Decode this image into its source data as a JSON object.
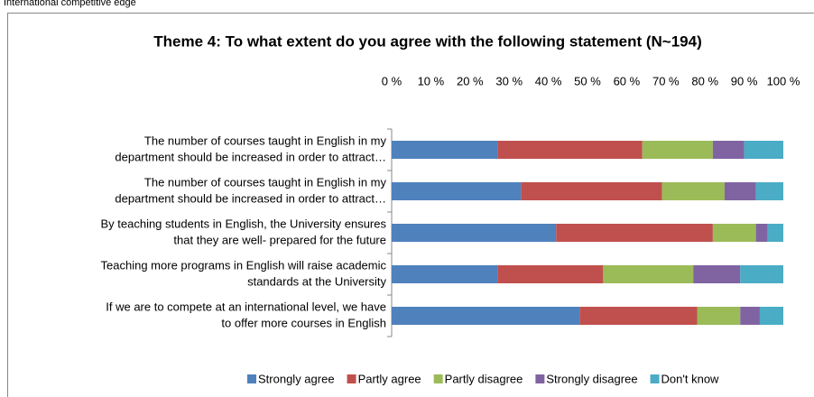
{
  "caption": "International competitive edge",
  "chart_data": {
    "type": "stacked-bar-horizontal",
    "title": "Theme 4: To what extent do you agree with the following statement (N~194)",
    "categories": [
      [
        "The number of courses taught in English in my",
        "department should be increased in order to attract…"
      ],
      [
        "The number of courses taught in English in my",
        "department should be increased in order to attract…"
      ],
      [
        "By teaching students in English, the University ensures",
        "that they are well- prepared for the future"
      ],
      [
        "Teaching more programs in English will raise academic",
        "standards at the University"
      ],
      [
        "If we are to compete at an international level, we have",
        "to offer more courses in English"
      ]
    ],
    "series": [
      {
        "name": "Strongly agree",
        "color": "#4f81bd",
        "values": [
          27,
          33,
          42,
          27,
          48
        ]
      },
      {
        "name": "Partly agree",
        "color": "#c0504d",
        "values": [
          37,
          36,
          40,
          27,
          30
        ]
      },
      {
        "name": "Partly disagree",
        "color": "#9bbb59",
        "values": [
          18,
          16,
          11,
          23,
          11
        ]
      },
      {
        "name": "Strongly disagree",
        "color": "#8064a2",
        "values": [
          8,
          8,
          3,
          12,
          5
        ]
      },
      {
        "name": "Don't know",
        "color": "#4bacc6",
        "values": [
          10,
          7,
          4,
          11,
          6
        ]
      }
    ],
    "xlim": [
      0,
      100
    ],
    "xticks": [
      {
        "value": 0,
        "label": "0 %"
      },
      {
        "value": 10,
        "label": "10 %"
      },
      {
        "value": 20,
        "label": "20 %"
      },
      {
        "value": 30,
        "label": "30 %"
      },
      {
        "value": 40,
        "label": "40 %"
      },
      {
        "value": 50,
        "label": "50 %"
      },
      {
        "value": 60,
        "label": "60 %"
      },
      {
        "value": 70,
        "label": "70 %"
      },
      {
        "value": 80,
        "label": "80 %"
      },
      {
        "value": 90,
        "label": "90 %"
      },
      {
        "value": 100,
        "label": "100 %"
      }
    ],
    "legend": "bottom"
  }
}
